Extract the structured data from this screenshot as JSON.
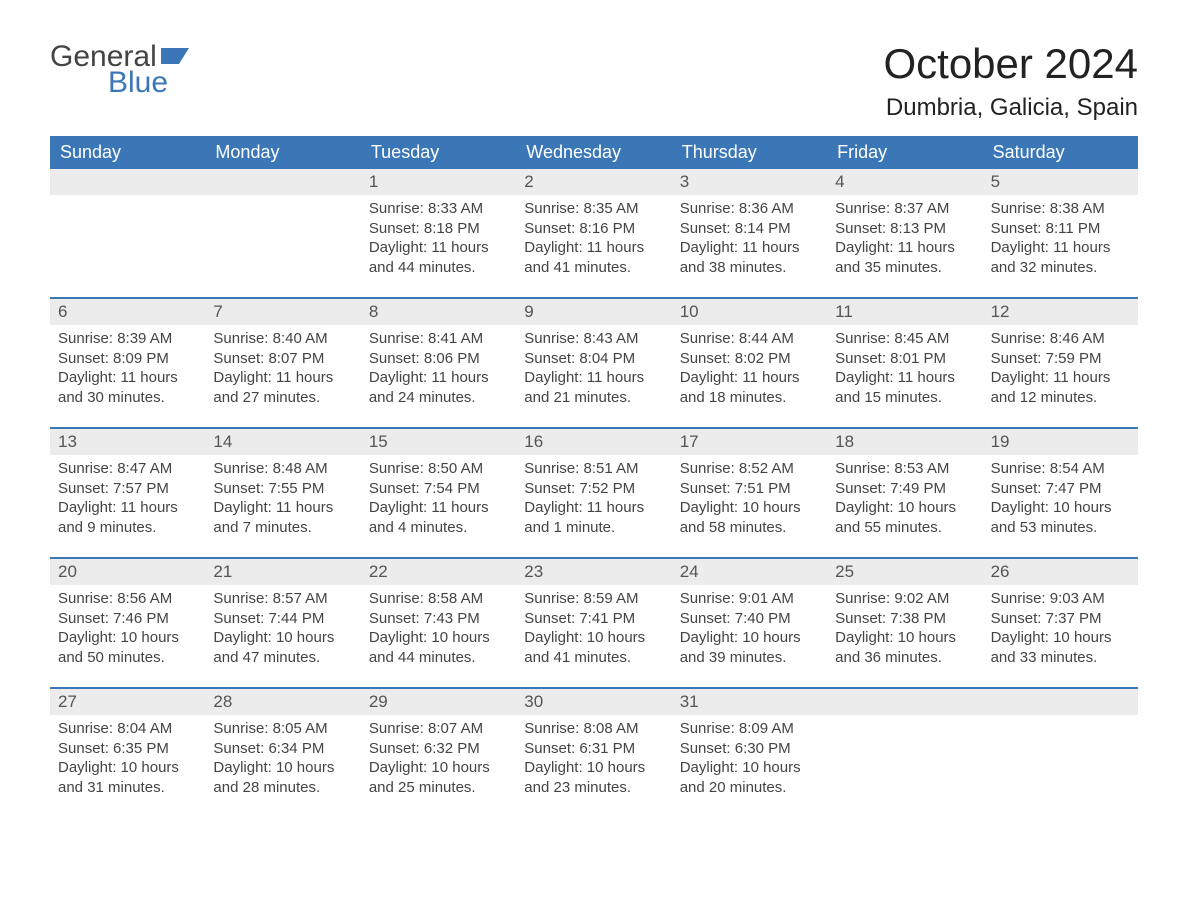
{
  "logo": {
    "general": "General",
    "blue": "Blue",
    "flag_color": "#3b77b7"
  },
  "title": "October 2024",
  "location": "Dumbria, Galicia, Spain",
  "colors": {
    "header_bg": "#3b77b7",
    "header_text": "#ffffff",
    "date_strip_bg": "#ececec",
    "text": "#444444",
    "background": "#ffffff"
  },
  "day_names": [
    "Sunday",
    "Monday",
    "Tuesday",
    "Wednesday",
    "Thursday",
    "Friday",
    "Saturday"
  ],
  "weeks": [
    [
      null,
      null,
      {
        "d": "1",
        "sr": "8:33 AM",
        "ss": "8:18 PM",
        "dl": "11 hours and 44 minutes."
      },
      {
        "d": "2",
        "sr": "8:35 AM",
        "ss": "8:16 PM",
        "dl": "11 hours and 41 minutes."
      },
      {
        "d": "3",
        "sr": "8:36 AM",
        "ss": "8:14 PM",
        "dl": "11 hours and 38 minutes."
      },
      {
        "d": "4",
        "sr": "8:37 AM",
        "ss": "8:13 PM",
        "dl": "11 hours and 35 minutes."
      },
      {
        "d": "5",
        "sr": "8:38 AM",
        "ss": "8:11 PM",
        "dl": "11 hours and 32 minutes."
      }
    ],
    [
      {
        "d": "6",
        "sr": "8:39 AM",
        "ss": "8:09 PM",
        "dl": "11 hours and 30 minutes."
      },
      {
        "d": "7",
        "sr": "8:40 AM",
        "ss": "8:07 PM",
        "dl": "11 hours and 27 minutes."
      },
      {
        "d": "8",
        "sr": "8:41 AM",
        "ss": "8:06 PM",
        "dl": "11 hours and 24 minutes."
      },
      {
        "d": "9",
        "sr": "8:43 AM",
        "ss": "8:04 PM",
        "dl": "11 hours and 21 minutes."
      },
      {
        "d": "10",
        "sr": "8:44 AM",
        "ss": "8:02 PM",
        "dl": "11 hours and 18 minutes."
      },
      {
        "d": "11",
        "sr": "8:45 AM",
        "ss": "8:01 PM",
        "dl": "11 hours and 15 minutes."
      },
      {
        "d": "12",
        "sr": "8:46 AM",
        "ss": "7:59 PM",
        "dl": "11 hours and 12 minutes."
      }
    ],
    [
      {
        "d": "13",
        "sr": "8:47 AM",
        "ss": "7:57 PM",
        "dl": "11 hours and 9 minutes."
      },
      {
        "d": "14",
        "sr": "8:48 AM",
        "ss": "7:55 PM",
        "dl": "11 hours and 7 minutes."
      },
      {
        "d": "15",
        "sr": "8:50 AM",
        "ss": "7:54 PM",
        "dl": "11 hours and 4 minutes."
      },
      {
        "d": "16",
        "sr": "8:51 AM",
        "ss": "7:52 PM",
        "dl": "11 hours and 1 minute."
      },
      {
        "d": "17",
        "sr": "8:52 AM",
        "ss": "7:51 PM",
        "dl": "10 hours and 58 minutes."
      },
      {
        "d": "18",
        "sr": "8:53 AM",
        "ss": "7:49 PM",
        "dl": "10 hours and 55 minutes."
      },
      {
        "d": "19",
        "sr": "8:54 AM",
        "ss": "7:47 PM",
        "dl": "10 hours and 53 minutes."
      }
    ],
    [
      {
        "d": "20",
        "sr": "8:56 AM",
        "ss": "7:46 PM",
        "dl": "10 hours and 50 minutes."
      },
      {
        "d": "21",
        "sr": "8:57 AM",
        "ss": "7:44 PM",
        "dl": "10 hours and 47 minutes."
      },
      {
        "d": "22",
        "sr": "8:58 AM",
        "ss": "7:43 PM",
        "dl": "10 hours and 44 minutes."
      },
      {
        "d": "23",
        "sr": "8:59 AM",
        "ss": "7:41 PM",
        "dl": "10 hours and 41 minutes."
      },
      {
        "d": "24",
        "sr": "9:01 AM",
        "ss": "7:40 PM",
        "dl": "10 hours and 39 minutes."
      },
      {
        "d": "25",
        "sr": "9:02 AM",
        "ss": "7:38 PM",
        "dl": "10 hours and 36 minutes."
      },
      {
        "d": "26",
        "sr": "9:03 AM",
        "ss": "7:37 PM",
        "dl": "10 hours and 33 minutes."
      }
    ],
    [
      {
        "d": "27",
        "sr": "8:04 AM",
        "ss": "6:35 PM",
        "dl": "10 hours and 31 minutes."
      },
      {
        "d": "28",
        "sr": "8:05 AM",
        "ss": "6:34 PM",
        "dl": "10 hours and 28 minutes."
      },
      {
        "d": "29",
        "sr": "8:07 AM",
        "ss": "6:32 PM",
        "dl": "10 hours and 25 minutes."
      },
      {
        "d": "30",
        "sr": "8:08 AM",
        "ss": "6:31 PM",
        "dl": "10 hours and 23 minutes."
      },
      {
        "d": "31",
        "sr": "8:09 AM",
        "ss": "6:30 PM",
        "dl": "10 hours and 20 minutes."
      },
      null,
      null
    ]
  ],
  "labels": {
    "sunrise": "Sunrise: ",
    "sunset": "Sunset: ",
    "daylight": "Daylight: "
  }
}
